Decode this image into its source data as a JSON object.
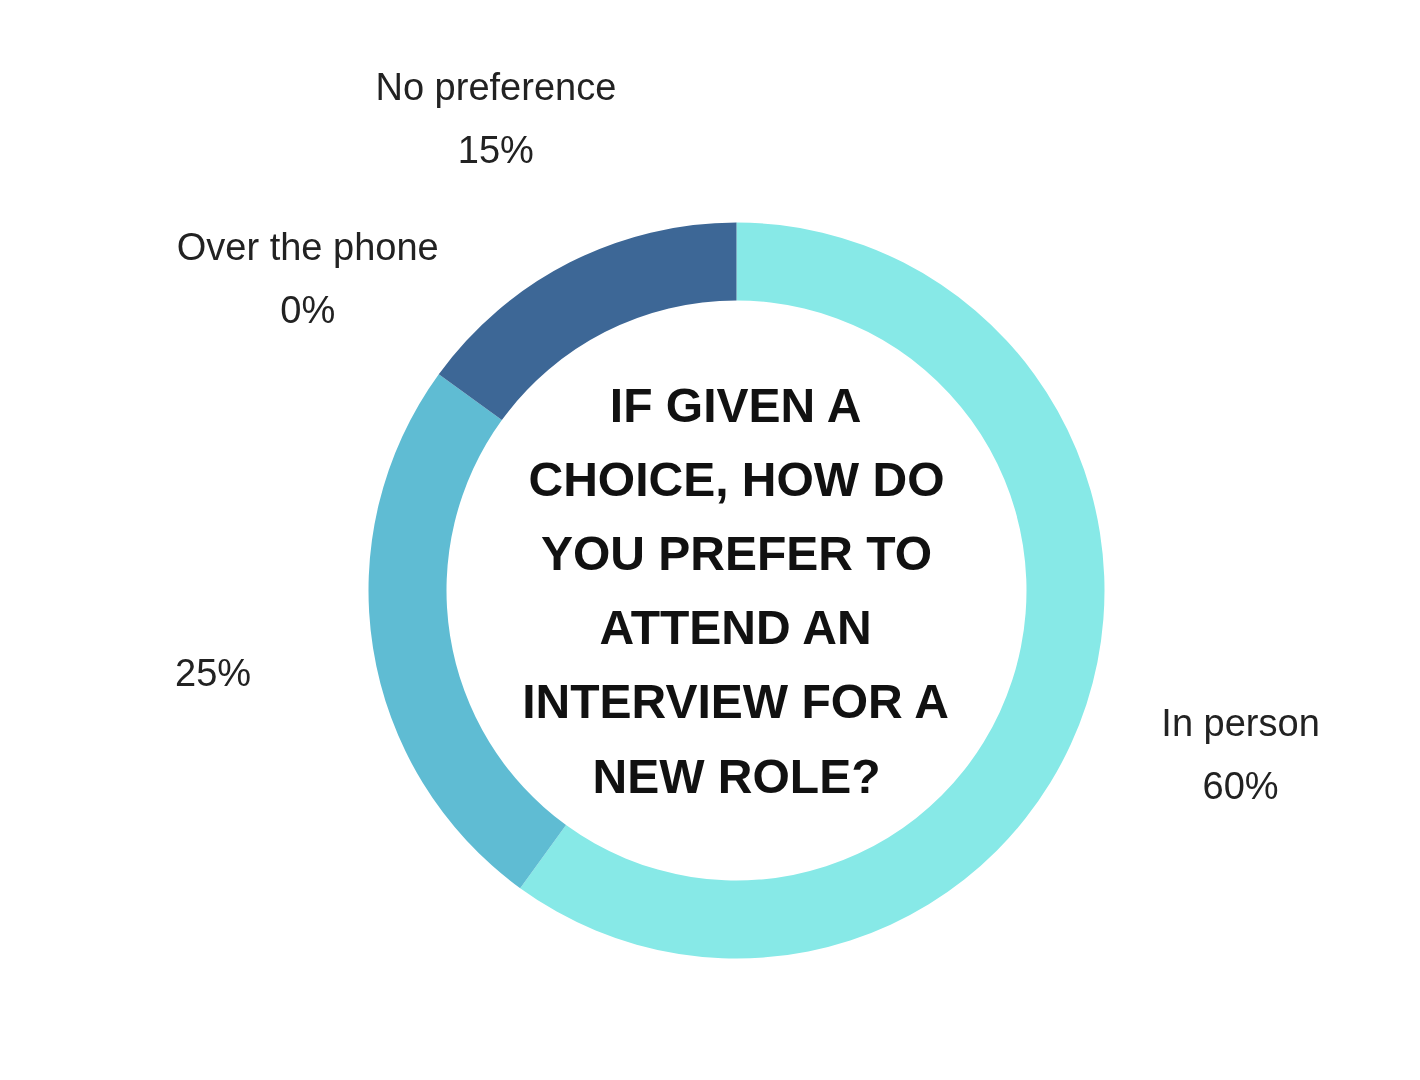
{
  "chart_data": {
    "type": "donut",
    "title": "IF GIVEN A CHOICE, HOW DO YOU PREFER TO ATTEND AN INTERVIEW FOR A NEW ROLE?",
    "categories": [
      "In person",
      null,
      "Over the phone",
      "No preference"
    ],
    "values": [
      60,
      25,
      0,
      15
    ],
    "value_labels": [
      "60%",
      "25%",
      "0%",
      "15%"
    ],
    "colors": [
      "#87e9e7",
      "#5fbcd3",
      "#34557f",
      "#3d6796"
    ],
    "legend": false
  }
}
